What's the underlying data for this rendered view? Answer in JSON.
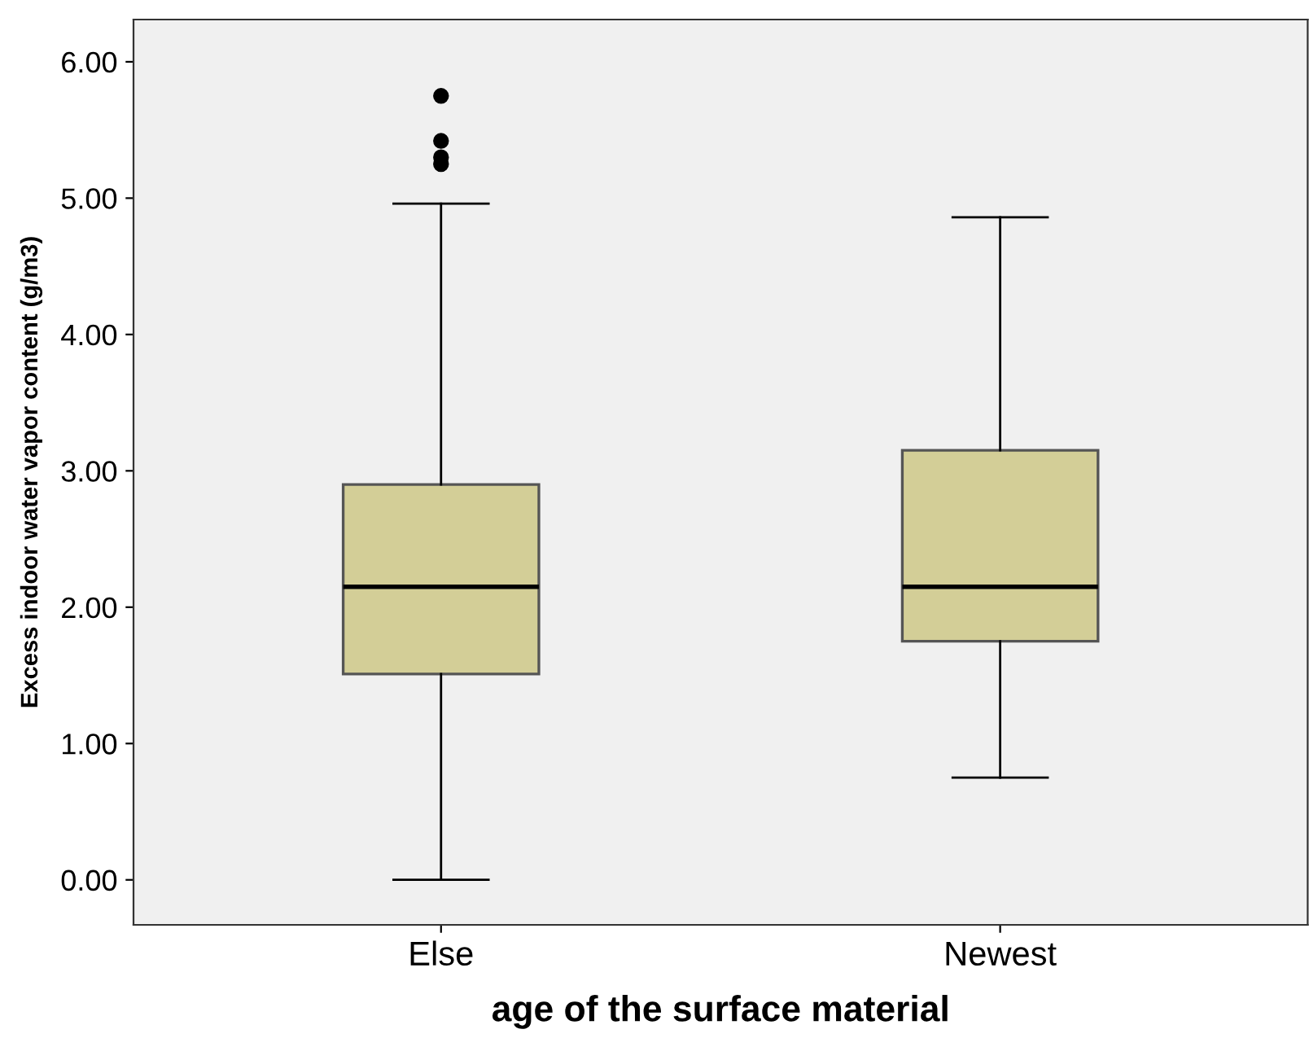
{
  "chart_data": {
    "type": "box",
    "xlabel": "age of the surface material",
    "ylabel": "Excess indoor water vapor content (g/m3)",
    "categories": [
      "Else",
      "Newest"
    ],
    "boxes": [
      {
        "low": 0.0,
        "q1": 1.51,
        "median": 2.15,
        "q3": 2.9,
        "high": 4.96,
        "outliers": [
          5.75,
          5.42,
          5.3,
          5.25
        ]
      },
      {
        "low": 0.75,
        "q1": 1.75,
        "median": 2.15,
        "q3": 3.15,
        "high": 4.86
      }
    ],
    "color": "#d3ce97",
    "ylim": [
      -0.33,
      6.31
    ],
    "yticks": [
      {
        "value": 0,
        "label": "0.00"
      },
      {
        "value": 1,
        "label": "1.00"
      },
      {
        "value": 2,
        "label": "2.00"
      },
      {
        "value": 3,
        "label": "3.00"
      },
      {
        "value": 4,
        "label": "4.00"
      },
      {
        "value": 5,
        "label": "5.00"
      },
      {
        "value": 6,
        "label": "6.00"
      }
    ],
    "grid": false
  }
}
